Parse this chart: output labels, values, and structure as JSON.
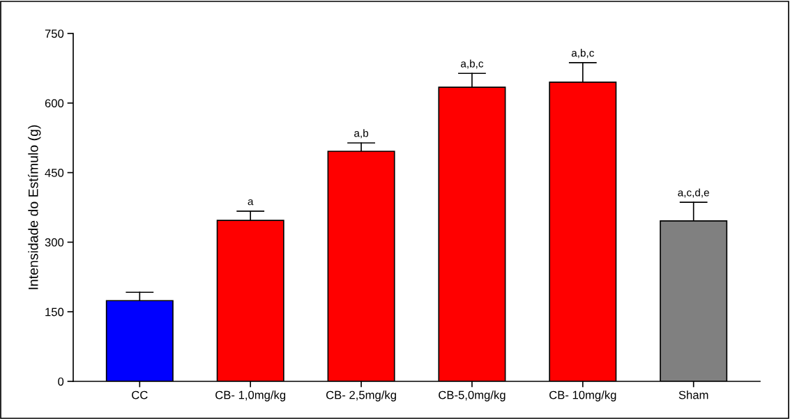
{
  "chart_data": {
    "type": "bar",
    "ylabel": "Intensidade do Estímulo (g)",
    "categories": [
      "CC",
      "CB- 1,0mg/kg",
      "CB- 2,5mg/kg",
      "CB-5,0mg/kg",
      "CB- 10mg/kg",
      "Sham"
    ],
    "values": [
      174,
      347,
      496,
      634,
      645,
      346
    ],
    "colors": [
      "#0000ff",
      "#ff0000",
      "#ff0000",
      "#ff0000",
      "#ff0000",
      "#808080"
    ],
    "errors": [
      [
        174,
        192
      ],
      [
        347,
        367
      ],
      [
        496,
        514
      ],
      [
        634,
        664
      ],
      [
        645,
        687
      ],
      [
        346,
        386
      ]
    ],
    "ylim": [
      0,
      750
    ],
    "yticks": [
      0,
      150,
      300,
      450,
      600,
      750
    ],
    "grid": false,
    "legend": false,
    "annotations": [
      {
        "text": "a",
        "x": "CB- 1,0mg/kg",
        "y": 367
      },
      {
        "text": "a,b",
        "x": "CB- 2,5mg/kg",
        "y": 514
      },
      {
        "text": "a,b,c",
        "x": "CB-5,0mg/kg",
        "y": 664
      },
      {
        "text": "a,b,c",
        "x": "CB- 10mg/kg",
        "y": 687
      },
      {
        "text": "a,c,d,e",
        "x": "Sham",
        "y": 386
      }
    ]
  }
}
